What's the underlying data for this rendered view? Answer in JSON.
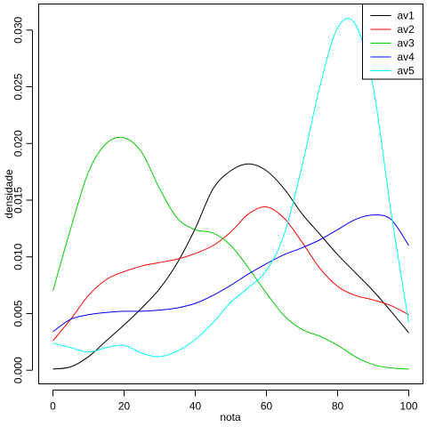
{
  "chart_data": {
    "type": "line",
    "xlabel": "nota",
    "ylabel": "densidade",
    "xlim": [
      -4,
      104
    ],
    "ylim": [
      -0.0012,
      0.0323
    ],
    "x_ticks": [
      0,
      20,
      40,
      60,
      80,
      100
    ],
    "y_ticks": [
      0.0,
      0.005,
      0.01,
      0.015,
      0.02,
      0.025,
      0.03
    ],
    "y_tick_labels": [
      "0.000",
      "0.005",
      "0.010",
      "0.015",
      "0.020",
      "0.025",
      "0.030"
    ],
    "grid": false,
    "legend_position": "top-right",
    "series": [
      {
        "name": "av1",
        "color": "#000000",
        "x": [
          0,
          5,
          10,
          15,
          20,
          25,
          30,
          35,
          40,
          45,
          50,
          55,
          60,
          65,
          70,
          75,
          80,
          85,
          90,
          95,
          100
        ],
        "y": [
          0.0001,
          0.0003,
          0.0012,
          0.0026,
          0.004,
          0.0055,
          0.0072,
          0.0095,
          0.0125,
          0.016,
          0.0176,
          0.0182,
          0.0176,
          0.016,
          0.0138,
          0.012,
          0.0102,
          0.0086,
          0.007,
          0.0052,
          0.0033
        ]
      },
      {
        "name": "av2",
        "color": "#ff0000",
        "x": [
          0,
          5,
          10,
          15,
          20,
          25,
          30,
          35,
          40,
          45,
          50,
          55,
          60,
          65,
          70,
          75,
          80,
          85,
          90,
          95,
          100
        ],
        "y": [
          0.0026,
          0.0045,
          0.0066,
          0.008,
          0.0087,
          0.0092,
          0.0095,
          0.0098,
          0.0103,
          0.011,
          0.0122,
          0.0138,
          0.0144,
          0.0134,
          0.0113,
          0.009,
          0.0074,
          0.0066,
          0.0062,
          0.0057,
          0.0049
        ]
      },
      {
        "name": "av3",
        "color": "#00cd00",
        "x": [
          0,
          5,
          10,
          15,
          20,
          25,
          30,
          35,
          40,
          45,
          50,
          55,
          60,
          65,
          70,
          75,
          80,
          85,
          90,
          95,
          100
        ],
        "y": [
          0.007,
          0.0125,
          0.0175,
          0.02,
          0.0205,
          0.0192,
          0.016,
          0.0134,
          0.0124,
          0.0121,
          0.011,
          0.009,
          0.0068,
          0.0048,
          0.0036,
          0.003,
          0.0022,
          0.0012,
          0.0005,
          0.0002,
          0.0001
        ]
      },
      {
        "name": "av4",
        "color": "#0000ff",
        "x": [
          0,
          5,
          10,
          15,
          20,
          25,
          30,
          35,
          40,
          45,
          50,
          55,
          60,
          65,
          70,
          75,
          80,
          85,
          90,
          95,
          100
        ],
        "y": [
          0.0034,
          0.0045,
          0.0049,
          0.0051,
          0.0052,
          0.0052,
          0.0053,
          0.0055,
          0.0059,
          0.0066,
          0.0075,
          0.0085,
          0.0094,
          0.0102,
          0.0108,
          0.0115,
          0.0124,
          0.0133,
          0.0137,
          0.0133,
          0.011
        ]
      },
      {
        "name": "av5",
        "color": "#00ffff",
        "x": [
          0,
          5,
          10,
          15,
          20,
          25,
          30,
          35,
          40,
          45,
          50,
          55,
          60,
          65,
          70,
          75,
          80,
          85,
          90,
          95,
          100
        ],
        "y": [
          0.0024,
          0.002,
          0.0016,
          0.002,
          0.0022,
          0.0015,
          0.0012,
          0.0017,
          0.0027,
          0.0042,
          0.006,
          0.0073,
          0.0088,
          0.012,
          0.018,
          0.025,
          0.0302,
          0.0305,
          0.025,
          0.014,
          0.0042
        ]
      }
    ]
  }
}
